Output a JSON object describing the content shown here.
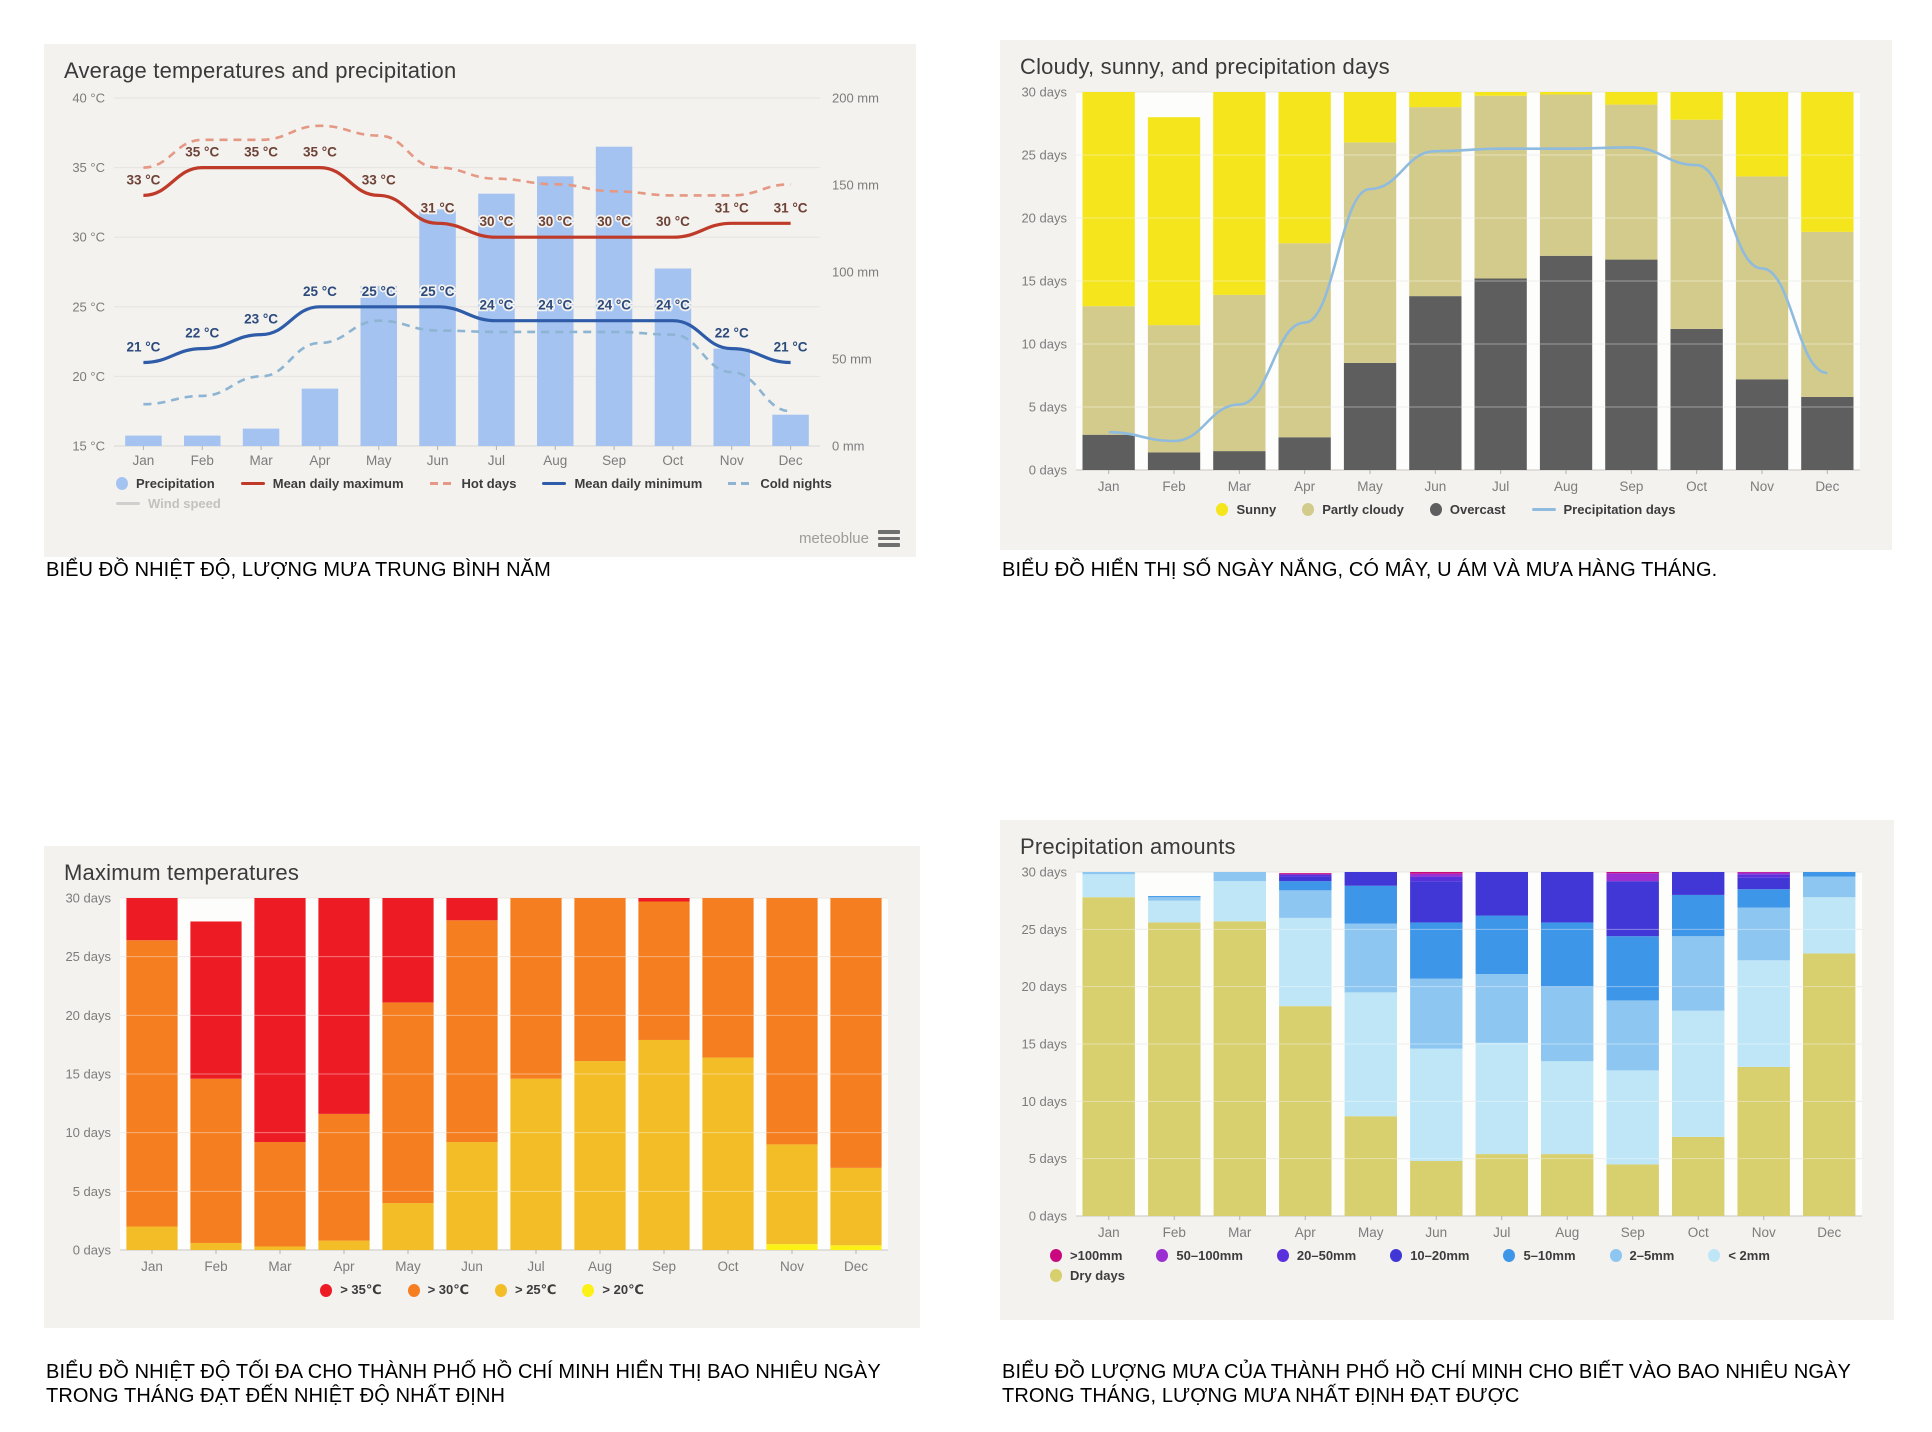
{
  "months": [
    "Jan",
    "Feb",
    "Mar",
    "Apr",
    "May",
    "Jun",
    "Jul",
    "Aug",
    "Sep",
    "Oct",
    "Nov",
    "Dec"
  ],
  "branding": {
    "watermark": "meteoblue"
  },
  "chart_data": [
    {
      "type": "composite-bar-line",
      "title": "Average temperatures and precipitation",
      "caption": "BIỂU ĐỒ NHIỆT ĐỘ, LƯỢNG MƯA TRUNG BÌNH NĂM",
      "categories": [
        "Jan",
        "Feb",
        "Mar",
        "Apr",
        "May",
        "Jun",
        "Jul",
        "Aug",
        "Sep",
        "Oct",
        "Nov",
        "Dec"
      ],
      "y_left": {
        "unit": "°C",
        "min": 15,
        "max": 40,
        "ticks": [
          40,
          35,
          30,
          25,
          20,
          15
        ]
      },
      "y_right": {
        "unit": "mm",
        "min": 0,
        "max": 200,
        "ticks": [
          200,
          150,
          100,
          50,
          0
        ]
      },
      "series": [
        {
          "name": "Precipitation",
          "kind": "bar",
          "axis": "right",
          "color": "#a5c3f0",
          "values": [
            6,
            6,
            10,
            33,
            92,
            136,
            145,
            155,
            172,
            102,
            56,
            18
          ]
        },
        {
          "name": "Hot days",
          "kind": "line",
          "dashed": true,
          "color": "#e59884",
          "values": [
            35,
            37,
            37,
            38,
            37.3,
            35,
            34.2,
            33.8,
            33.3,
            33,
            33,
            33.8
          ]
        },
        {
          "name": "Cold nights",
          "kind": "line",
          "dashed": true,
          "color": "#8db4d2",
          "values": [
            18,
            18.6,
            20,
            22.4,
            24,
            23.3,
            23.2,
            23.2,
            23.2,
            23,
            20.3,
            17.5
          ]
        },
        {
          "name": "Mean daily maximum",
          "kind": "line",
          "color": "#bf3a28",
          "labels": true,
          "label_color": "#6e4237",
          "values": [
            33,
            35,
            35,
            35,
            33,
            31,
            30,
            30,
            30,
            30,
            31,
            31
          ]
        },
        {
          "name": "Mean daily minimum",
          "kind": "line",
          "color": "#2f5ca8",
          "labels": true,
          "label_color": "#2c4a7c",
          "values": [
            21,
            22,
            23,
            25,
            25,
            25,
            24,
            24,
            24,
            24,
            22,
            21
          ]
        },
        {
          "name": "Wind speed",
          "kind": "line",
          "color": "#cccccc",
          "disabled": true,
          "values": []
        }
      ],
      "legend_rows": [
        [
          {
            "label": "Precipitation",
            "swatch": "dot",
            "color": "#a5c3f0"
          },
          {
            "label": "Mean daily maximum",
            "swatch": "line",
            "color": "#bf3a28"
          },
          {
            "label": "Hot days",
            "swatch": "dash",
            "color": "#e59884"
          },
          {
            "label": "Mean daily minimum",
            "swatch": "line",
            "color": "#2f5ca8"
          },
          {
            "label": "Cold nights",
            "swatch": "dash",
            "color": "#8db4d2"
          }
        ],
        [
          {
            "label": "Wind speed",
            "swatch": "line",
            "color": "#cfcfcf",
            "muted": true
          }
        ]
      ]
    },
    {
      "type": "stacked-bar-line",
      "title": "Cloudy, sunny, and precipitation days",
      "caption": "BIỂU ĐỒ HIỂN THỊ SỐ NGÀY NẮNG, CÓ MÂY, U ÁM VÀ MƯA HÀNG THÁNG.",
      "categories": [
        "Jan",
        "Feb",
        "Mar",
        "Apr",
        "May",
        "Jun",
        "Jul",
        "Aug",
        "Sep",
        "Oct",
        "Nov",
        "Dec"
      ],
      "y": {
        "unit": "days",
        "min": 0,
        "max": 30,
        "ticks": [
          30,
          25,
          20,
          15,
          10,
          5,
          0
        ]
      },
      "stacks": [
        {
          "name": "Overcast",
          "color": "#5e5e5e",
          "values": [
            2.8,
            1.4,
            1.5,
            2.6,
            8.5,
            13.8,
            15.2,
            17,
            16.7,
            11.2,
            7.2,
            5.8
          ]
        },
        {
          "name": "Partly cloudy",
          "color": "#d3cb8c",
          "values": [
            10.2,
            10.1,
            12.4,
            15.4,
            17.5,
            15,
            14.5,
            12.8,
            12.3,
            16.6,
            16.1,
            13.1
          ]
        },
        {
          "name": "Sunny",
          "color": "#f4e51d",
          "values": [
            17,
            16.5,
            16.1,
            12,
            4,
            1.2,
            0.3,
            0.2,
            1,
            2.2,
            6.7,
            11.1
          ]
        }
      ],
      "line": {
        "name": "Precipitation days",
        "color": "#8fbbde",
        "values": [
          3,
          2.3,
          5.2,
          11.7,
          22.3,
          25.3,
          25.5,
          25.5,
          25.6,
          24.2,
          16,
          7.7
        ]
      },
      "legend_rows": [
        [
          {
            "label": "Sunny",
            "swatch": "dot",
            "color": "#f4e51d"
          },
          {
            "label": "Partly cloudy",
            "swatch": "dot",
            "color": "#d3cb8c"
          },
          {
            "label": "Overcast",
            "swatch": "dot",
            "color": "#5e5e5e"
          },
          {
            "label": "Precipitation days",
            "swatch": "line",
            "color": "#8fbbde"
          }
        ]
      ]
    },
    {
      "type": "stacked-bar",
      "title": "Maximum temperatures",
      "caption": "BIỂU ĐỒ NHIỆT ĐỘ TỐI ĐA CHO THÀNH PHỐ HỒ CHÍ MINH HIỂN THỊ BAO NHIÊU NGÀY\nTRONG THÁNG ĐẠT ĐẾN NHIỆT ĐỘ NHẤT ĐỊNH",
      "categories": [
        "Jan",
        "Feb",
        "Mar",
        "Apr",
        "May",
        "Jun",
        "Jul",
        "Aug",
        "Sep",
        "Oct",
        "Nov",
        "Dec"
      ],
      "y": {
        "unit": "days",
        "min": 0,
        "max": 30,
        "ticks": [
          30,
          25,
          20,
          15,
          10,
          5,
          0
        ]
      },
      "stacks": [
        {
          "name": "> 20℃",
          "color": "#fbf116",
          "values": [
            0,
            0,
            0,
            0,
            0,
            0,
            0,
            0,
            0,
            0,
            0.5,
            0.4
          ]
        },
        {
          "name": "> 25℃",
          "color": "#f3bd27",
          "values": [
            2,
            0.6,
            0.3,
            0.8,
            4,
            9.2,
            14.6,
            16.1,
            17.9,
            16.4,
            8.5,
            6.6
          ]
        },
        {
          "name": "> 30℃",
          "color": "#f57e20",
          "values": [
            24.4,
            14,
            8.9,
            10.8,
            17.1,
            18.9,
            15.4,
            13.9,
            11.8,
            13.6,
            21,
            23
          ]
        },
        {
          "name": "> 35℃",
          "color": "#ed1b24",
          "values": [
            3.6,
            13.4,
            20.8,
            18.4,
            8.9,
            1.9,
            0,
            0,
            0.3,
            0,
            0,
            0
          ]
        }
      ],
      "legend_rows": [
        [
          {
            "label": "> 35℃",
            "swatch": "dot",
            "color": "#ed1b24"
          },
          {
            "label": "> 30℃",
            "swatch": "dot",
            "color": "#f57e20"
          },
          {
            "label": "> 25℃",
            "swatch": "dot",
            "color": "#f3bd27"
          },
          {
            "label": "> 20℃",
            "swatch": "dot",
            "color": "#fbf116"
          }
        ]
      ]
    },
    {
      "type": "stacked-bar",
      "title": "Precipitation amounts",
      "caption": "BIỂU ĐỒ LƯỢNG MƯA CỦA THÀNH PHỐ HỒ CHÍ MINH CHO BIẾT VÀO BAO NHIÊU NGÀY\nTRONG THÁNG, LƯỢNG MƯA NHẤT ĐỊNH ĐẠT ĐƯỢC",
      "categories": [
        "Jan",
        "Feb",
        "Mar",
        "Apr",
        "May",
        "Jun",
        "Jul",
        "Aug",
        "Sep",
        "Oct",
        "Nov",
        "Dec"
      ],
      "y": {
        "unit": "days",
        "min": 0,
        "max": 30,
        "ticks": [
          30,
          25,
          20,
          15,
          10,
          5,
          0
        ]
      },
      "stacks": [
        {
          "name": "Dry days",
          "color": "#d8cf6e",
          "values": [
            27.8,
            25.6,
            25.7,
            18.3,
            8.7,
            4.8,
            5.4,
            5.4,
            4.5,
            6.9,
            13,
            22.9
          ]
        },
        {
          "name": "< 2mm",
          "color": "#bfe6f7",
          "values": [
            2,
            1.9,
            3.5,
            7.7,
            10.8,
            9.8,
            9.7,
            8.1,
            8.2,
            11,
            9.3,
            4.9
          ]
        },
        {
          "name": "2–5mm",
          "color": "#8ec6f2",
          "values": [
            0.2,
            0.3,
            0.8,
            2.4,
            6,
            6.1,
            6,
            6.5,
            6.1,
            6.5,
            4.6,
            1.8
          ]
        },
        {
          "name": "5–10mm",
          "color": "#3e96e8",
          "values": [
            0,
            0.1,
            0,
            0.8,
            3.3,
            4.9,
            5.1,
            5.6,
            5.6,
            3.6,
            1.6,
            0.4
          ]
        },
        {
          "name": "10–20mm",
          "color": "#4136d6",
          "values": [
            0,
            0,
            0,
            0.4,
            1.2,
            3.6,
            3.8,
            4.4,
            4.8,
            2,
            1,
            0
          ]
        },
        {
          "name": "20–50mm",
          "color": "#5a30dd",
          "values": [
            0,
            0,
            0,
            0.2,
            0,
            0.4,
            0,
            0,
            0,
            0,
            0.3,
            0
          ]
        },
        {
          "name": "50–100mm",
          "color": "#9b2fd1",
          "values": [
            0,
            0,
            0,
            0,
            0,
            0.25,
            0,
            0,
            0.7,
            0,
            0.15,
            0
          ]
        },
        {
          "name": ">100mm",
          "color": "#c9087f",
          "values": [
            0,
            0,
            0,
            0.1,
            0,
            0.15,
            0,
            0,
            0.1,
            0,
            0.05,
            0
          ]
        }
      ],
      "legend_rows": [
        [
          {
            "label": ">100mm",
            "swatch": "dot",
            "color": "#c9087f"
          },
          {
            "label": "50–100mm",
            "swatch": "dot",
            "color": "#9b2fd1"
          },
          {
            "label": "20–50mm",
            "swatch": "dot",
            "color": "#5a30dd"
          },
          {
            "label": "10–20mm",
            "swatch": "dot",
            "color": "#4136d6"
          },
          {
            "label": "5–10mm",
            "swatch": "dot",
            "color": "#3e96e8"
          },
          {
            "label": "2–5mm",
            "swatch": "dot",
            "color": "#8ec6f2"
          },
          {
            "label": "< 2mm",
            "swatch": "dot",
            "color": "#bfe6f7"
          }
        ],
        [
          {
            "label": "Dry days",
            "swatch": "dot",
            "color": "#d8cf6e"
          }
        ]
      ]
    }
  ]
}
